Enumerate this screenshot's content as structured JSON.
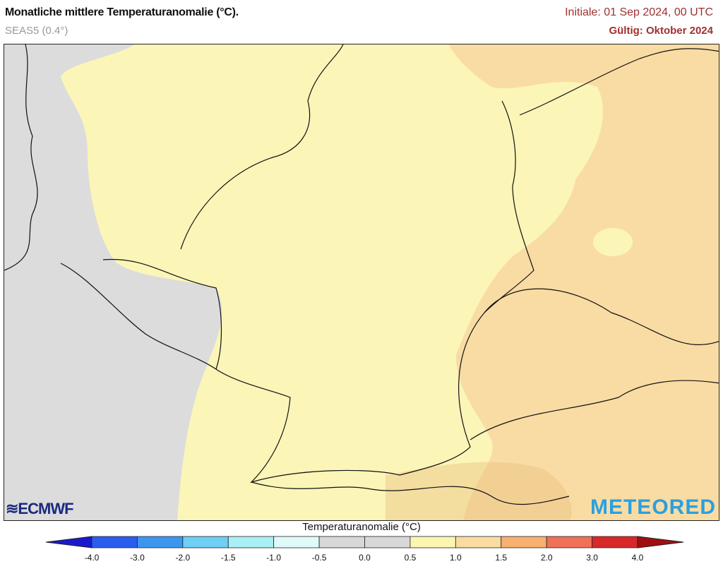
{
  "header": {
    "title": "Monatliche mittlere Temperaturanomalie (°C).",
    "model": "SEAS5 (0.4°)",
    "initial": "Initiale: 01 Sep 2024, 00 UTC",
    "valid": "Gültig: Oktober 2024"
  },
  "logos": {
    "left": "ECMWF",
    "right": "METEORED"
  },
  "legend": {
    "title": "Temperaturanomalie (°C)",
    "ticks": [
      "-4.0",
      "-3.0",
      "-2.0",
      "-1.5",
      "-1.0",
      "-0.5",
      "0.0",
      "0.5",
      "1.0",
      "1.5",
      "2.0",
      "3.0",
      "4.0"
    ],
    "below_color": "#1a1acc",
    "colors": [
      "#2a5cf0",
      "#3c96f0",
      "#6fcff5",
      "#a8f0f5",
      "#e0fafa",
      "#d8d8d8",
      "#d8d8d8",
      "#fbf5b0",
      "#fbdca0",
      "#f8b070",
      "#f07058",
      "#d82828"
    ],
    "above_color": "#a01010"
  },
  "map": {
    "region": "Germany and surroundings",
    "anomaly_colors": {
      "near_zero": "#dcdcdc",
      "0.5_1.0": "#fbf5b8",
      "1.0_1.5": "#f9dca4"
    }
  }
}
